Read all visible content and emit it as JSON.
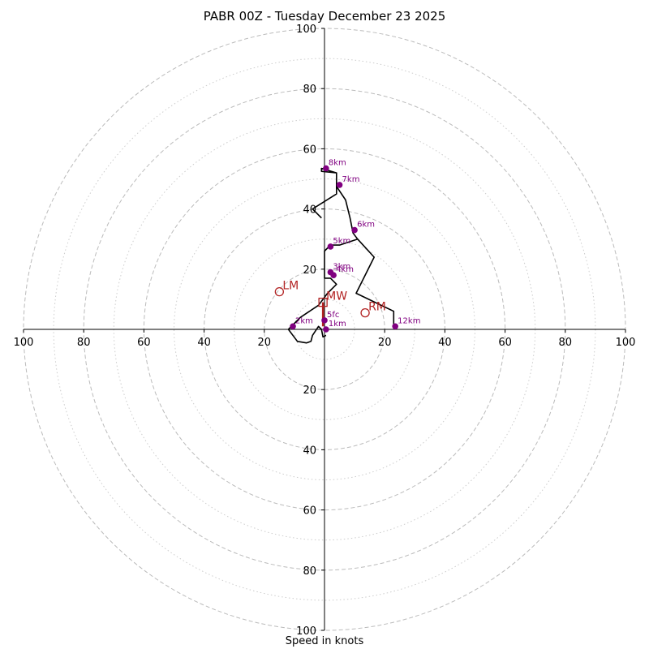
{
  "chart_data": {
    "type": "hodograph",
    "title": "PABR 00Z - Tuesday December 23 2025",
    "xlabel": "Speed in knots",
    "range": [
      -100,
      100
    ],
    "ring_major": [
      20,
      40,
      60,
      80,
      100
    ],
    "ring_minor": [
      10,
      30,
      50,
      70,
      90
    ],
    "tick_values": [
      100,
      80,
      60,
      40,
      20
    ],
    "grid": true,
    "colors": {
      "trace": "#000000",
      "height_points": "#800080",
      "motion": "#b22222",
      "grid": "#bbbbbb"
    },
    "trace": [
      [
        0.5,
        -2
      ],
      [
        -0.5,
        -2.5
      ],
      [
        -1,
        0
      ],
      [
        -2,
        1
      ],
      [
        -4,
        -2
      ],
      [
        -4.5,
        -4
      ],
      [
        -6,
        -4.5
      ],
      [
        -9,
        -4
      ],
      [
        -12,
        0
      ],
      [
        -8,
        4
      ],
      [
        -2,
        8
      ],
      [
        1,
        12
      ],
      [
        4,
        15
      ],
      [
        2,
        17
      ],
      [
        0,
        17
      ],
      [
        0,
        26
      ],
      [
        2,
        28
      ],
      [
        5,
        28
      ],
      [
        11,
        30
      ],
      [
        16.5,
        24
      ],
      [
        10.5,
        12
      ],
      [
        23,
        6
      ],
      [
        23,
        1.5
      ],
      [
        23,
        1
      ],
      [
        23.5,
        1
      ],
      [
        23,
        1.5
      ],
      [
        23,
        6
      ],
      [
        10.5,
        12
      ],
      [
        16.5,
        24
      ],
      [
        11,
        30
      ],
      [
        9.5,
        32
      ],
      [
        8.5,
        37
      ],
      [
        7,
        43
      ],
      [
        4,
        47.5
      ],
      [
        4,
        52
      ],
      [
        -1,
        52.5
      ],
      [
        -1,
        53.5
      ],
      [
        4,
        52
      ],
      [
        4,
        45
      ],
      [
        -4,
        40
      ],
      [
        -1,
        37
      ]
    ],
    "height_points": [
      {
        "label": "5fc",
        "u": 0,
        "v": 3
      },
      {
        "label": "1km",
        "u": 0.5,
        "v": 0
      },
      {
        "label": "2km",
        "u": -10.5,
        "v": 1
      },
      {
        "label": "3km",
        "u": 2,
        "v": 19
      },
      {
        "label": "4km",
        "u": 3,
        "v": 18
      },
      {
        "label": "5km",
        "u": 2,
        "v": 27.5
      },
      {
        "label": "6km",
        "u": 10,
        "v": 33
      },
      {
        "label": "7km",
        "u": 5,
        "v": 48
      },
      {
        "label": "8km",
        "u": 0.5,
        "v": 53.5
      },
      {
        "label": "12km",
        "u": 23.5,
        "v": 1
      }
    ],
    "storm_motion": [
      {
        "label": "LM",
        "u": -15,
        "v": 12.5,
        "marker": "circle"
      },
      {
        "label": "MW",
        "u": -0.5,
        "v": 9,
        "marker": "square"
      },
      {
        "label": "RM",
        "u": 13.5,
        "v": 5.5,
        "marker": "circle"
      }
    ],
    "mean_wind_vector": {
      "u0": -0.5,
      "v0": 1,
      "u1": -0.5,
      "v1": 9
    }
  }
}
